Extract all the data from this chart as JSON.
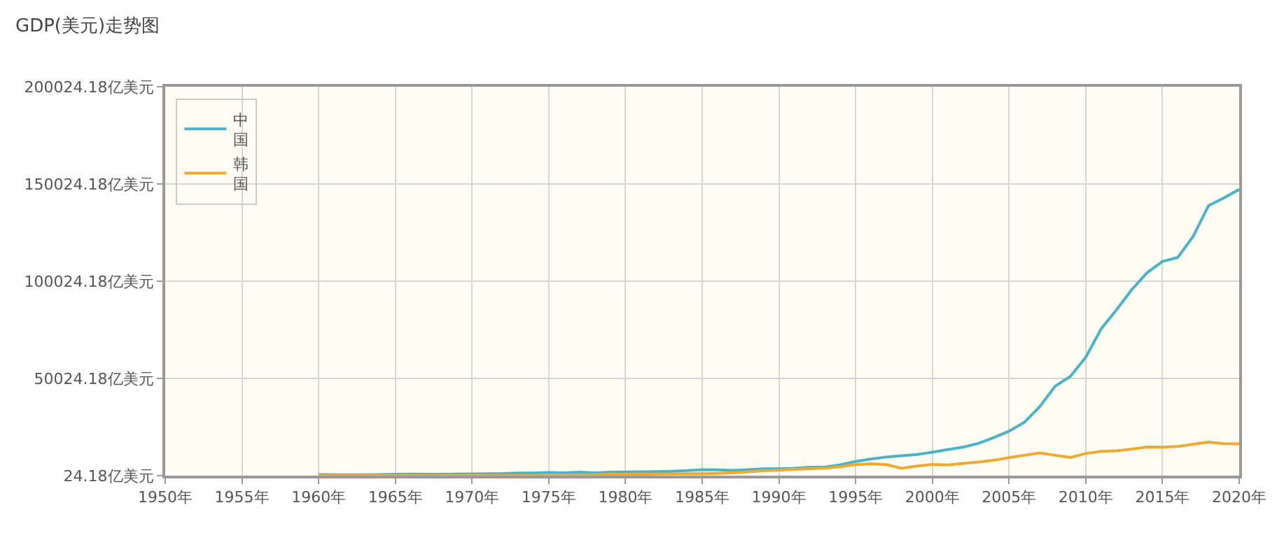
{
  "chart_data": {
    "type": "line",
    "title": "GDP(美元)走势图",
    "x": [
      1960,
      1961,
      1962,
      1963,
      1964,
      1965,
      1966,
      1967,
      1968,
      1969,
      1970,
      1971,
      1972,
      1973,
      1974,
      1975,
      1976,
      1977,
      1978,
      1979,
      1980,
      1981,
      1982,
      1983,
      1984,
      1985,
      1986,
      1987,
      1988,
      1989,
      1990,
      1991,
      1992,
      1993,
      1994,
      1995,
      1996,
      1997,
      1998,
      1999,
      2000,
      2001,
      2002,
      2003,
      2004,
      2005,
      2006,
      2007,
      2008,
      2009,
      2010,
      2011,
      2012,
      2013,
      2014,
      2015,
      2016,
      2017,
      2018,
      2019,
      2020
    ],
    "series": [
      {
        "name": "中国",
        "color": "#4bb3c8",
        "values": [
          600,
          500,
          500,
          500,
          600,
          700,
          800,
          700,
          700,
          800,
          900,
          1000,
          1100,
          1400,
          1400,
          1600,
          1500,
          1800,
          1500,
          1800,
          1900,
          2000,
          2100,
          2300,
          2600,
          3100,
          3000,
          2700,
          3100,
          3500,
          3600,
          3800,
          4300,
          4400,
          5600,
          7300,
          8600,
          9600,
          10300,
          10900,
          12100,
          13400,
          14700,
          16600,
          19600,
          22900,
          27500,
          35500,
          46000,
          51100,
          60900,
          75500,
          85300,
          95700,
          104400,
          110200,
          112300,
          123100,
          138900,
          142800,
          147200
        ]
      },
      {
        "name": "韩国",
        "color": "#f0a830",
        "values": [
          100,
          100,
          100,
          100,
          100,
          100,
          100,
          100,
          100,
          100,
          100,
          100,
          100,
          100,
          200,
          200,
          300,
          400,
          500,
          700,
          700,
          700,
          800,
          900,
          1000,
          1000,
          1200,
          1500,
          2000,
          2500,
          2800,
          3300,
          3600,
          3900,
          4600,
          5700,
          6100,
          5700,
          3800,
          5000,
          5800,
          5500,
          6300,
          7000,
          7900,
          9300,
          10500,
          11700,
          10500,
          9400,
          11400,
          12500,
          12800,
          13700,
          14800,
          14700,
          15000,
          16200,
          17300,
          16500,
          16400
        ]
      }
    ],
    "xlim": [
      1950,
      2020
    ],
    "xticks": [
      {
        "value": 1950,
        "label": "1950年"
      },
      {
        "value": 1955,
        "label": "1955年"
      },
      {
        "value": 1960,
        "label": "1960年"
      },
      {
        "value": 1965,
        "label": "1965年"
      },
      {
        "value": 1970,
        "label": "1970年"
      },
      {
        "value": 1975,
        "label": "1975年"
      },
      {
        "value": 1980,
        "label": "1980年"
      },
      {
        "value": 1985,
        "label": "1985年"
      },
      {
        "value": 1990,
        "label": "1990年"
      },
      {
        "value": 1995,
        "label": "1995年"
      },
      {
        "value": 2000,
        "label": "2000年"
      },
      {
        "value": 2005,
        "label": "2005年"
      },
      {
        "value": 2010,
        "label": "2010年"
      },
      {
        "value": 2015,
        "label": "2015年"
      },
      {
        "value": 2020,
        "label": "2020年"
      }
    ],
    "ylim": [
      24.18,
      200024.18
    ],
    "yticks": [
      {
        "value": 24.18,
        "label": "24.18亿美元"
      },
      {
        "value": 50024.18,
        "label": "50024.18亿美元"
      },
      {
        "value": 100024.18,
        "label": "100024.18亿美元"
      },
      {
        "value": 150024.18,
        "label": "150024.18亿美元"
      },
      {
        "value": 200024.18,
        "label": "200024.18亿美元"
      }
    ],
    "grid": true,
    "legend": "top left",
    "marker": "none",
    "line_style": "solid"
  }
}
